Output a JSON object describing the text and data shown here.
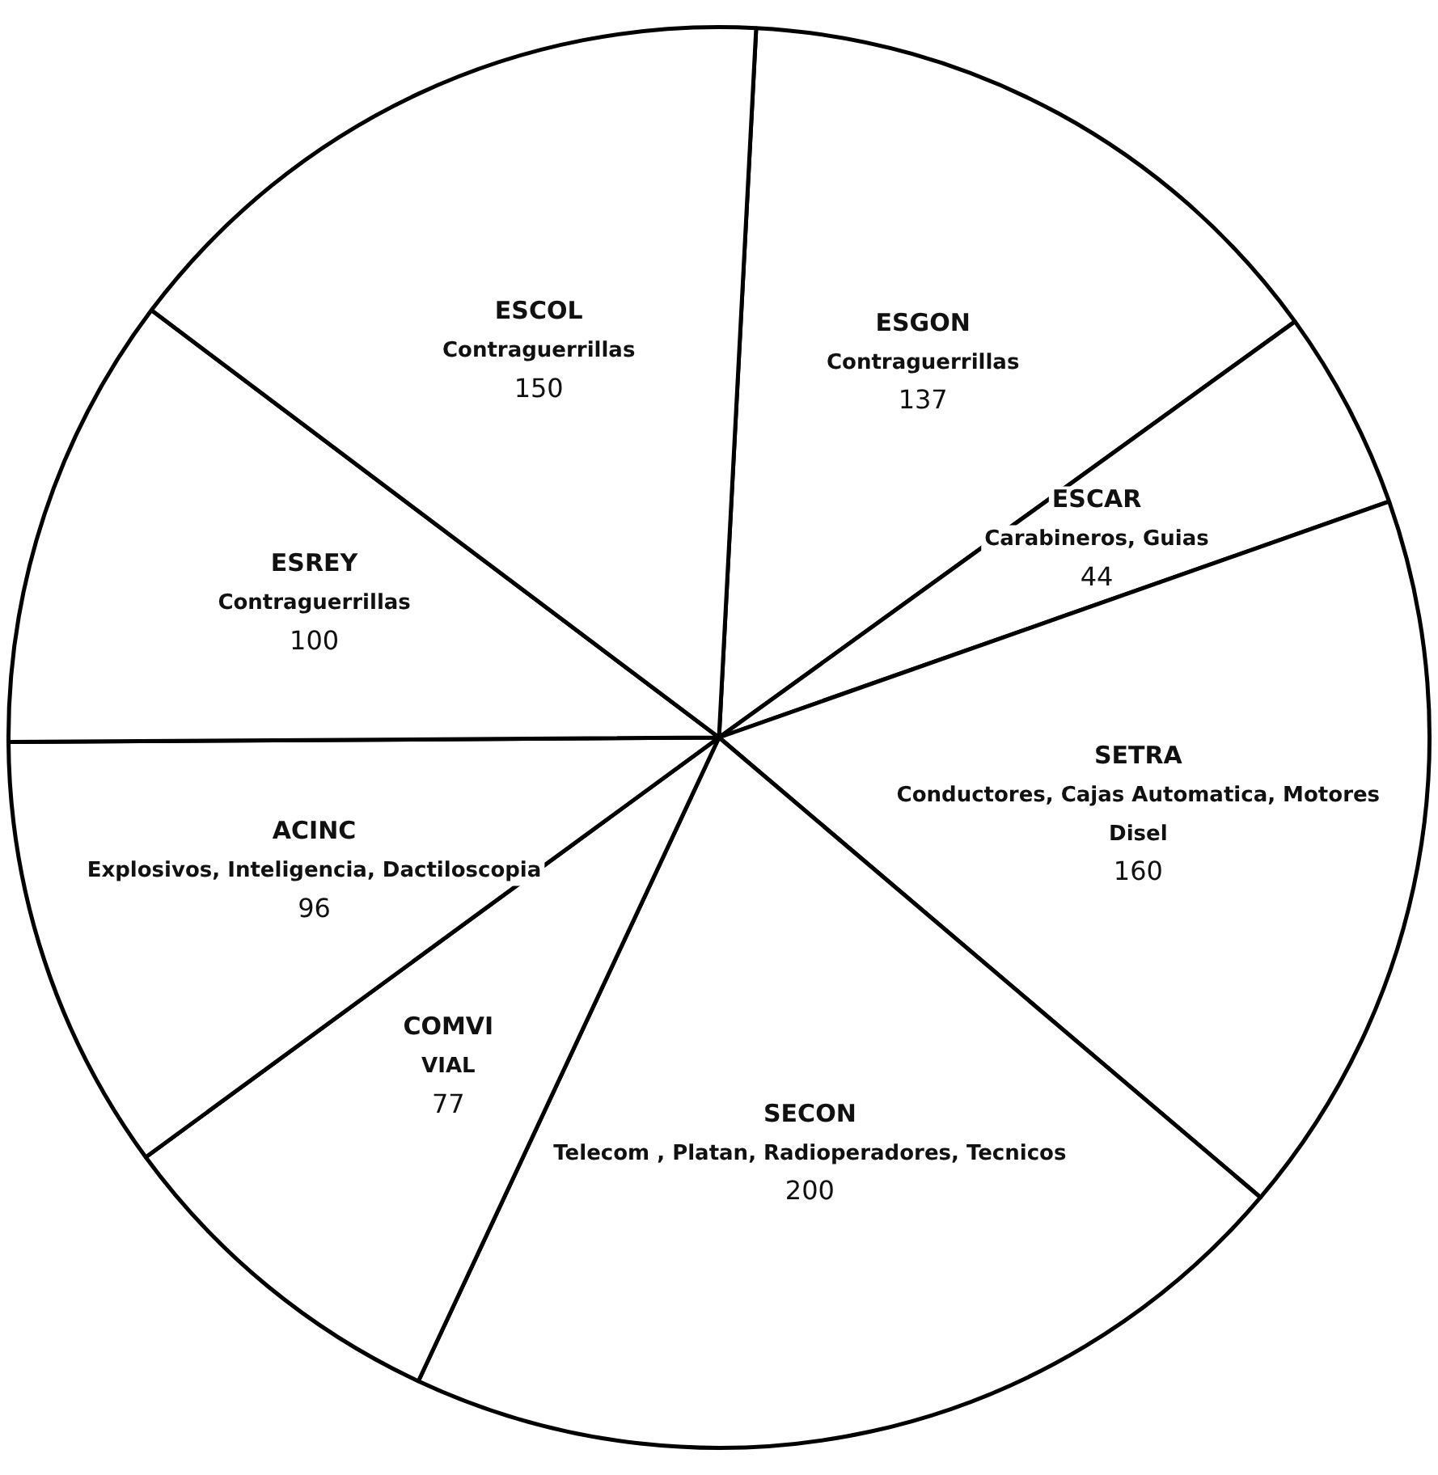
{
  "chart_data": {
    "type": "pie",
    "categories": [
      "ESGON\nContraguerrillas",
      "ESCAR\nCarabineros, Guias",
      "SETRA\nConductores, Cajas Automatica, Motores\nDisel",
      "SECON\nTelecom , Platan, Radioperadores, Tecnicos",
      "COMVI\nVIAL",
      "ACINC\nExplosivos, Inteligencia, Dactiloscopia",
      "ESREY\nContraguerrillas",
      "ESCOL\nContraguerrillas"
    ],
    "values": [
      137,
      44,
      160,
      200,
      77,
      96,
      100,
      150
    ],
    "colors": [
      "#ffffff",
      "#ffffff",
      "#ffffff",
      "#ffffff",
      "#ffffff",
      "#ffffff",
      "#ffffff",
      "#ffffff"
    ],
    "data_labels": true,
    "legend": false
  }
}
